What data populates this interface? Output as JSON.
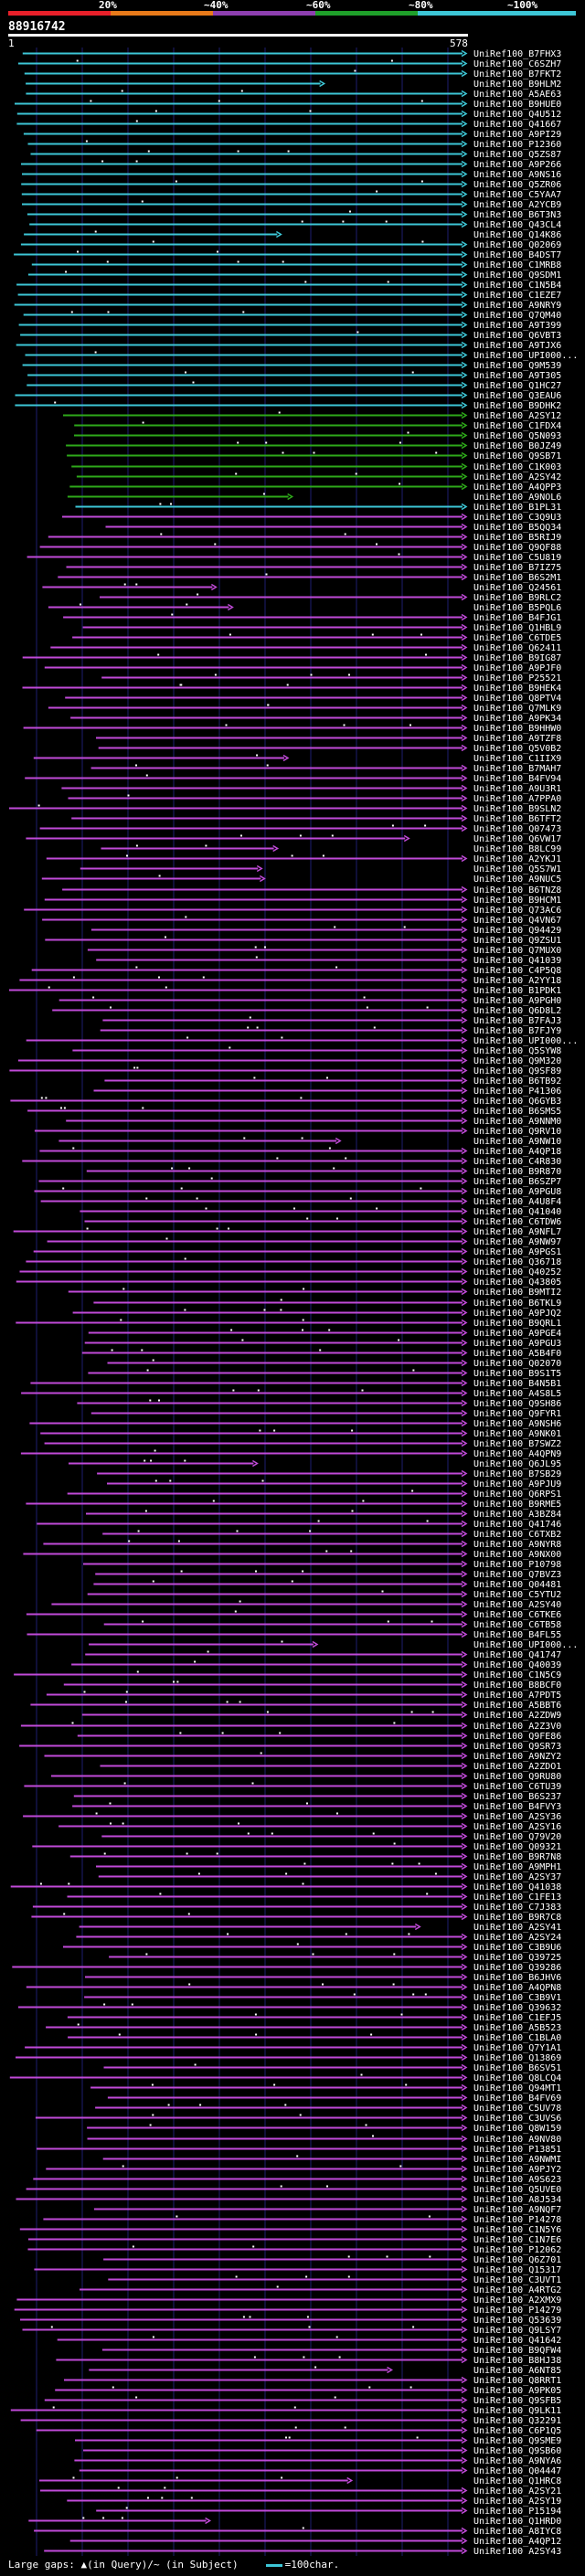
{
  "header": {
    "percent_labels": [
      "20%",
      "~40%",
      "~60%",
      "~80%",
      "~100%"
    ],
    "bar_colors": [
      "#e8202a",
      "#e87a1a",
      "#8e3fb0",
      "#1fa02a",
      "#3dc6d6"
    ],
    "query_id": "88916742",
    "query_start": "1",
    "query_end": "578"
  },
  "legend": {
    "text": "Large gaps: ▲(in Query)/~ (in Subject)",
    "swatch_label": "=100char."
  },
  "colors": {
    "cyan": "#3dc6d6",
    "green": "#2ea81a",
    "magenta": "#c04ad8",
    "grid": "#1e1e70"
  },
  "hits": {
    "cyan": [
      "UniRef100_B7FHX3",
      "UniRef100_C6SZH7",
      "UniRef100_B7FKT2",
      "UniRef100_B9HLM2",
      "UniRef100_A5AE63",
      "UniRef100_B9HUE0",
      "UniRef100_Q4U512",
      "UniRef100_Q41667",
      "UniRef100_A9PI29",
      "UniRef100_P12360",
      "UniRef100_Q5ZS87",
      "UniRef100_A9P266",
      "UniRef100_A9NS16",
      "UniRef100_Q5ZR06",
      "UniRef100_C5YAA7",
      "UniRef100_A2YCB9",
      "UniRef100_B6T3N3",
      "UniRef100_Q43CL4",
      "UniRef100_Q14K86",
      "UniRef100_Q02069",
      "UniRef100_B4DST7",
      "UniRef100_C1MRB8",
      "UniRef100_Q9SDM1",
      "UniRef100_C1N5B4",
      "UniRef100_C1EZE7",
      "UniRef100_A9NRY9",
      "UniRef100_Q7QM40",
      "UniRef100_A9T399",
      "UniRef100_Q6VBT3",
      "UniRef100_A9TJX6",
      "UniRef100_UPI000...",
      "UniRef100_Q9M539",
      "UniRef100_A9T305",
      "UniRef100_Q1HC27",
      "UniRef100_Q3EAU6",
      "UniRef100_B9DHK2"
    ],
    "green": [
      "UniRef100_A2SY12",
      "UniRef100_C1FDX4",
      "UniRef100_Q5N093",
      "UniRef100_B0JZ49",
      "UniRef100_Q9SB71",
      "UniRef100_C1K003",
      "UniRef100_A2SY42",
      "UniRef100_A4QPP3"
    ],
    "mixed": [
      "UniRef100_A9NOL6",
      "UniRef100_B1PL31"
    ],
    "magenta": [
      "UniRef100_C3Q9U3",
      "UniRef100_B5QQ34",
      "UniRef100_B5RIJ9",
      "UniRef100_Q9QF88",
      "UniRef100_C5U819",
      "UniRef100_B7IZ75",
      "UniRef100_B6S2M1",
      "UniRef100_Q24561",
      "UniRef100_B9RLC2",
      "UniRef100_B5PQL6",
      "UniRef100_B4FJG1",
      "UniRef100_Q1HBL9",
      "UniRef100_C6TDE5",
      "UniRef100_Q62411",
      "UniRef100_B9IG87",
      "UniRef100_A9PJF0",
      "UniRef100_P25521",
      "UniRef100_B9HEK4",
      "UniRef100_Q8PTV4",
      "UniRef100_Q7MLK9",
      "UniRef100_A9PK34",
      "UniRef100_B9HHW0",
      "UniRef100_A9TZF8",
      "UniRef100_Q5V0B2",
      "UniRef100_C1IIX9",
      "UniRef100_B7MAH7",
      "UniRef100_B4FV94",
      "UniRef100_A9U3R1",
      "UniRef100_A7PPA0",
      "UniRef100_B9SLN2",
      "UniRef100_B6TFT2",
      "UniRef100_Q07473",
      "UniRef100_Q6VW17",
      "UniRef100_B8LC99",
      "UniRef100_A2YKJ1",
      "UniRef100_Q5S7W1",
      "UniRef100_A9NUC5",
      "UniRef100_B6TNZ8",
      "UniRef100_B9HCM1",
      "UniRef100_Q73AC6",
      "UniRef100_Q4VN67",
      "UniRef100_Q94429",
      "UniRef100_Q9ZSU1",
      "UniRef100_Q7MUX0",
      "UniRef100_Q41039",
      "UniRef100_C4P5Q8",
      "UniRef100_A2YY18",
      "UniRef100_B1PDK1",
      "UniRef100_A9PGH0",
      "UniRef100_Q6D8L2",
      "UniRef100_B7FAJ3",
      "UniRef100_B7FJY9",
      "UniRef100_UPI000...",
      "UniRef100_Q5SYW8",
      "UniRef100_Q9M320",
      "UniRef100_Q9SF89",
      "UniRef100_B6TB92",
      "UniRef100_P41306",
      "UniRef100_Q6GYB3",
      "UniRef100_B6SMS5",
      "UniRef100_A9NNM0",
      "UniRef100_Q9RV10",
      "UniRef100_A9NW10",
      "UniRef100_A4QP18",
      "UniRef100_C4R830",
      "UniRef100_B9R870",
      "UniRef100_B6SZP7",
      "UniRef100_A9PGU8",
      "UniRef100_A4U8F4",
      "UniRef100_Q41040",
      "UniRef100_C6TDW6",
      "UniRef100_A9NFL7",
      "UniRef100_A9NW97",
      "UniRef100_A9PGS1",
      "UniRef100_Q36718",
      "UniRef100_Q40252",
      "UniRef100_Q43805",
      "UniRef100_B9MTI2",
      "UniRef100_B6TKL9",
      "UniRef100_A9PJQ2",
      "UniRef100_B9QRL1",
      "UniRef100_A9PGE4",
      "UniRef100_A9PGU3",
      "UniRef100_A5B4F0",
      "UniRef100_Q02070",
      "UniRef100_B9S1T5",
      "UniRef100_B4N5B1",
      "UniRef100_A4S8L5",
      "UniRef100_Q9SH86",
      "UniRef100_Q9FYR1",
      "UniRef100_A9NSH6",
      "UniRef100_A9NK01",
      "UniRef100_B7SWZ2",
      "UniRef100_A4QPN9",
      "UniRef100_Q6JL95",
      "UniRef100_B7SB29",
      "UniRef100_A9PJU9",
      "UniRef100_Q6RPS1",
      "UniRef100_B9RME5",
      "UniRef100_A3BZ84",
      "UniRef100_Q41746",
      "UniRef100_C6TXB2",
      "UniRef100_A9NYR8",
      "UniRef100_A9NX00",
      "UniRef100_P10798",
      "UniRef100_Q7BVZ3",
      "UniRef100_Q04481",
      "UniRef100_C5YTU2",
      "UniRef100_A2SY40",
      "UniRef100_C6TKE6",
      "UniRef100_C6TB58",
      "UniRef100_B4FL55",
      "UniRef100_UPI000...",
      "UniRef100_Q41747",
      "UniRef100_Q40039",
      "UniRef100_C1N5C9",
      "UniRef100_B8BCF0",
      "UniRef100_A7PDT5",
      "UniRef100_A5BBT6",
      "UniRef100_A2ZDW9",
      "UniRef100_A2Z3V0",
      "UniRef100_Q9FE86",
      "UniRef100_Q9SR73",
      "UniRef100_A9NZY2",
      "UniRef100_A2ZDO1",
      "UniRef100_Q9RU80",
      "UniRef100_C6TU39",
      "UniRef100_B6S237",
      "UniRef100_B4FVY3",
      "UniRef100_A2SY36",
      "UniRef100_A2SY16",
      "UniRef100_Q79V20",
      "UniRef100_Q09321",
      "UniRef100_B9R7N8",
      "UniRef100_A9MPH1",
      "UniRef100_A2SY37",
      "UniRef100_Q41038",
      "UniRef100_C1FE13",
      "UniRef100_C7J383",
      "UniRef100_B9R7C8",
      "UniRef100_A2SY41",
      "UniRef100_A2SY24",
      "UniRef100_C3B9U6",
      "UniRef100_Q39725",
      "UniRef100_Q39286",
      "UniRef100_B6JHV6",
      "UniRef100_A4QPN8",
      "UniRef100_C3B9V1",
      "UniRef100_Q39632",
      "UniRef100_C1EFJ5",
      "UniRef100_A5B523",
      "UniRef100_C1BLA0",
      "UniRef100_Q7Y1A1",
      "UniRef100_Q13869",
      "UniRef100_B6SV51",
      "UniRef100_Q8LCQ4",
      "UniRef100_Q94MT1",
      "UniRef100_B4FV69",
      "UniRef100_C5UV78",
      "UniRef100_C3UVS6",
      "UniRef100_Q8W159",
      "UniRef100_A9NV80",
      "UniRef100_P13851",
      "UniRef100_A9NWMI",
      "UniRef100_A9PJY2",
      "UniRef100_A9S623",
      "UniRef100_Q5UVE0",
      "UniRef100_A8J534",
      "UniRef100_A9NQF7",
      "UniRef100_P14278",
      "UniRef100_C1N5Y6",
      "UniRef100_C1N7E6",
      "UniRef100_P12062",
      "UniRef100_Q6Z701",
      "UniRef100_Q15317",
      "UniRef100_C3UVT1",
      "UniRef100_A4RTG2",
      "UniRef100_A2XMX9",
      "UniRef100_P14279",
      "UniRef100_Q53639",
      "UniRef100_Q9LSY7",
      "UniRef100_Q41642",
      "UniRef100_B9QFW4",
      "UniRef100_B8HJ38",
      "UniRef100_A6NT85",
      "UniRef100_Q8RRT1",
      "UniRef100_A9PK05",
      "UniRef100_Q9SFB5",
      "UniRef100_Q9LK11",
      "UniRef100_Q32291",
      "UniRef100_C6P1Q5",
      "UniRef100_Q9SME9",
      "UniRef100_Q9SB60",
      "UniRef100_A9NYA6",
      "UniRef100_Q04447",
      "UniRef100_Q1HRC8",
      "UniRef100_A2SY21",
      "UniRef100_A2SY19",
      "UniRef100_P15194",
      "UniRef100_Q1HRD0",
      "UniRef100_A8IYC8",
      "UniRef100_A4QP12",
      "UniRef100_A2SY43"
    ]
  }
}
